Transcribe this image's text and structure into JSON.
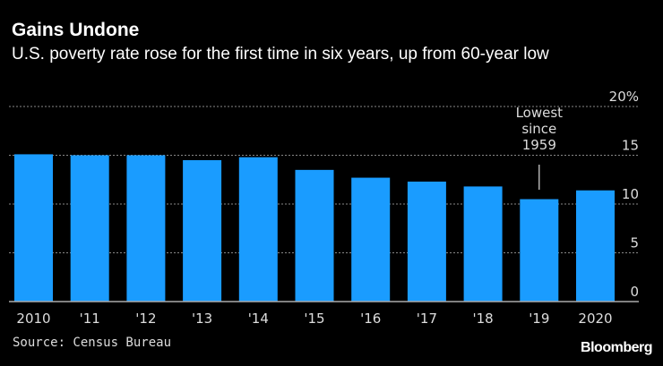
{
  "title": "Gains Undone",
  "subtitle": "U.S. poverty rate rose for the first time in six years, up from 60-year low",
  "source": "Source: Census Bureau",
  "logo": "Bloomberg",
  "chart_data": {
    "type": "bar",
    "categories": [
      "2010",
      "'11",
      "'12",
      "'13",
      "'14",
      "'15",
      "'16",
      "'17",
      "'18",
      "'19",
      "2020"
    ],
    "values": [
      15.1,
      15.0,
      15.0,
      14.5,
      14.8,
      13.5,
      12.7,
      12.3,
      11.8,
      10.5,
      11.4
    ],
    "ylim": [
      0,
      20
    ],
    "yticks": [
      "0",
      "5",
      "10",
      "15",
      "20%"
    ],
    "grid": true,
    "bar_color": "#1a9cff",
    "annotation": {
      "category": "'19",
      "lines": [
        "Lowest",
        "since",
        "1959"
      ]
    }
  }
}
